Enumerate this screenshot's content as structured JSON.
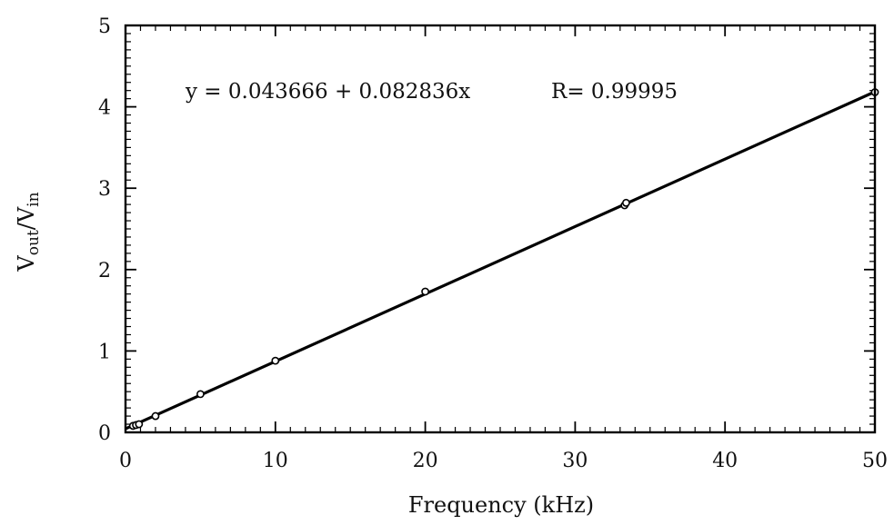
{
  "chart_data": {
    "type": "scatter",
    "title": "",
    "xlabel": "Frequency (kHz)",
    "ylabel_parts": {
      "main": "V",
      "sub1": "out",
      "sep": "/V",
      "sub2": "in"
    },
    "xlim": [
      0,
      50
    ],
    "ylim": [
      0,
      5
    ],
    "x_ticks": [
      0,
      10,
      20,
      30,
      40,
      50
    ],
    "x_tick_labels": [
      "0",
      "10",
      "20",
      "30",
      "40",
      "50"
    ],
    "y_ticks": [
      0,
      1,
      2,
      3,
      4,
      5
    ],
    "y_tick_labels": [
      "0",
      "1",
      "2",
      "3",
      "4",
      "5"
    ],
    "grid": false,
    "series": [
      {
        "x": [
          0.5,
          0.7,
          0.9,
          2.0,
          5.0,
          10.0,
          20.0,
          33.3,
          33.4,
          50.0
        ],
        "y": [
          0.08,
          0.09,
          0.1,
          0.2,
          0.47,
          0.88,
          1.73,
          2.79,
          2.82,
          4.18
        ]
      }
    ],
    "fit": {
      "intercept": 0.043666,
      "slope": 0.082836,
      "x_range": [
        0,
        50
      ]
    },
    "annotations": {
      "equation": "y = 0.043666 + 0.082836x",
      "r_value": "R= 0.99995"
    }
  }
}
